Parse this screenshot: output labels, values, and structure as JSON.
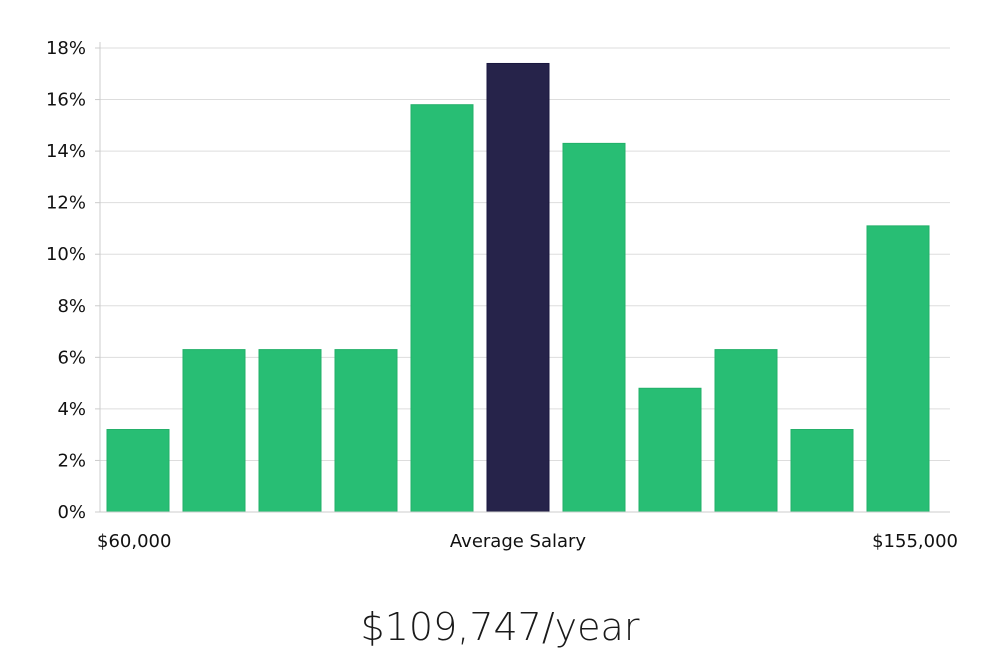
{
  "chart_data": {
    "type": "bar",
    "title": "",
    "xlabel": "",
    "ylabel": "",
    "ylim": [
      0,
      18
    ],
    "y_ticks": [
      0,
      2,
      4,
      6,
      8,
      10,
      12,
      14,
      16,
      18
    ],
    "y_tick_labels": [
      "0%",
      "2%",
      "4%",
      "6%",
      "8%",
      "10%",
      "12%",
      "14%",
      "16%",
      "18%"
    ],
    "values": [
      3.2,
      6.3,
      6.3,
      6.3,
      15.8,
      17.4,
      14.3,
      4.8,
      6.3,
      3.2,
      11.1
    ],
    "highlight_index": 5,
    "x_labels": {
      "left": "$60,000",
      "center": "Average Salary",
      "right": "$155,000"
    },
    "grid": true,
    "colors": {
      "bar": "#28be74",
      "highlight": "#26234a",
      "grid": "#dddddd",
      "axis": "#cccccc"
    }
  },
  "summary": {
    "salary_text": "$109,747/year"
  }
}
